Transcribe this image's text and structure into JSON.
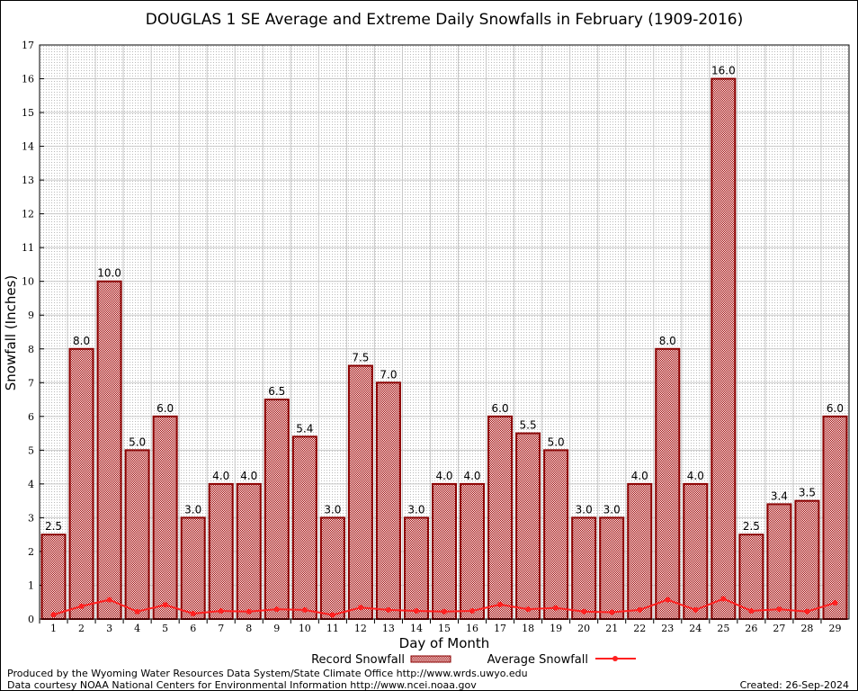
{
  "chart_data": {
    "type": "bar",
    "title": "DOUGLAS 1 SE Average and Extreme Daily Snowfalls in February (1909-2016)",
    "xlabel": "Day of Month",
    "ylabel": "Snowfall (Inches)",
    "ylim": [
      0,
      17
    ],
    "yticks": [
      0,
      1,
      2,
      3,
      4,
      5,
      6,
      7,
      8,
      9,
      10,
      11,
      12,
      13,
      14,
      15,
      16,
      17
    ],
    "grid": true,
    "legend_position": "bottom-center",
    "categories": [
      "1",
      "2",
      "3",
      "4",
      "5",
      "6",
      "7",
      "8",
      "9",
      "10",
      "11",
      "12",
      "13",
      "14",
      "15",
      "16",
      "17",
      "18",
      "19",
      "20",
      "21",
      "22",
      "23",
      "24",
      "25",
      "26",
      "27",
      "28",
      "29"
    ],
    "series": [
      {
        "name": "Record Snowfall",
        "type": "bar",
        "color": "#b00000",
        "values": [
          2.5,
          8.0,
          10.0,
          5.0,
          6.0,
          3.0,
          4.0,
          4.0,
          6.5,
          5.4,
          3.0,
          7.5,
          7.0,
          3.0,
          4.0,
          4.0,
          6.0,
          5.5,
          5.0,
          3.0,
          3.0,
          4.0,
          8.0,
          4.0,
          16.0,
          2.5,
          3.4,
          3.5,
          6.0
        ],
        "labels": [
          "2.5",
          "8.0",
          "10.0",
          "5.0",
          "6.0",
          "3.0",
          "4.0",
          "4.0",
          "6.5",
          "5.4",
          "3.0",
          "7.5",
          "7.0",
          "3.0",
          "4.0",
          "4.0",
          "6.0",
          "5.5",
          "5.0",
          "3.0",
          "3.0",
          "4.0",
          "8.0",
          "4.0",
          "16.0",
          "2.5",
          "3.4",
          "3.5",
          "6.0"
        ]
      },
      {
        "name": "Average Snowfall",
        "type": "line",
        "color": "#ff2020",
        "values": [
          0.13,
          0.38,
          0.57,
          0.22,
          0.42,
          0.16,
          0.24,
          0.22,
          0.29,
          0.27,
          0.12,
          0.34,
          0.27,
          0.24,
          0.22,
          0.24,
          0.43,
          0.29,
          0.33,
          0.22,
          0.2,
          0.27,
          0.57,
          0.27,
          0.6,
          0.24,
          0.29,
          0.22,
          0.48
        ]
      }
    ]
  },
  "footer": {
    "line1": "Produced by the Wyoming Water Resources Data System/State Climate Office http://www.wrds.uwyo.edu",
    "line2": "Data courtesy NOAA National Centers for Environmental Information http://www.ncei.noaa.gov",
    "created": "Created:  26-Sep-2024"
  }
}
